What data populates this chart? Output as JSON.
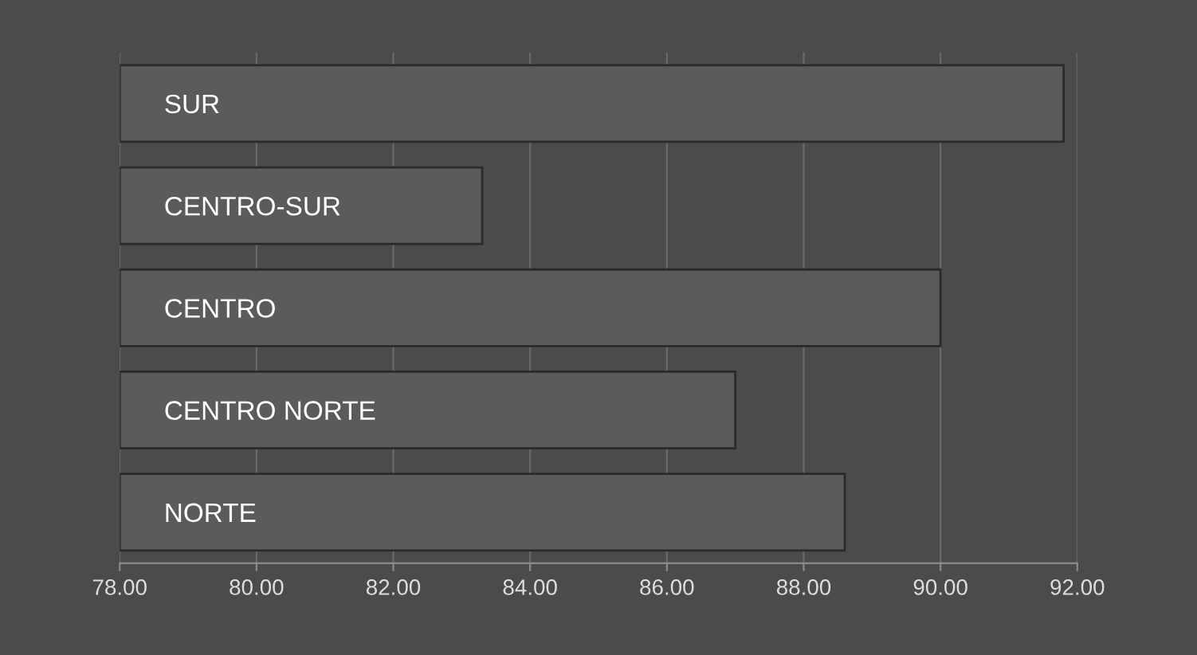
{
  "chart_data": {
    "type": "bar",
    "orientation": "horizontal",
    "categories": [
      "SUR",
      "CENTRO-SUR",
      "CENTRO",
      "CENTRO NORTE",
      "NORTE"
    ],
    "values": [
      91.8,
      83.3,
      90.0,
      87.0,
      88.6
    ],
    "color": "#5b5b5d",
    "xlim": [
      78,
      92
    ],
    "xticks": [
      {
        "value": 78,
        "label": "78.00"
      },
      {
        "value": 80,
        "label": "80.00"
      },
      {
        "value": 82,
        "label": "82.00"
      },
      {
        "value": 84,
        "label": "84.00"
      },
      {
        "value": 86,
        "label": "86.00"
      },
      {
        "value": 88,
        "label": "88.00"
      },
      {
        "value": 90,
        "label": "90.00"
      },
      {
        "value": 92,
        "label": "92.00"
      }
    ],
    "grid": "x"
  }
}
